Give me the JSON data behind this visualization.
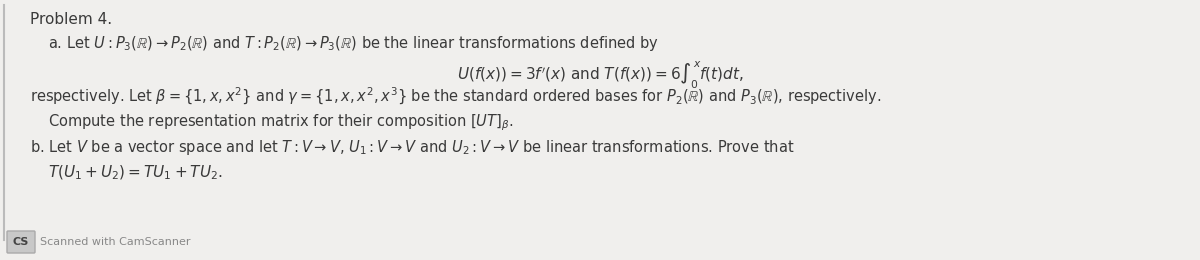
{
  "bg_color": "#f0efed",
  "text_color": "#3a3a3a",
  "title": "Problem 4.",
  "line1": "a. Let $U : P_3(\\mathbb{R}) \\rightarrow P_2(\\mathbb{R})$ and $T : P_2(\\mathbb{R}) \\rightarrow P_3(\\mathbb{R})$ be the linear transformations defined by",
  "line2": "$U(f(x)) = 3f'(x)$ and $T(f(x)) = 6\\int_0^x f(t)dt,$",
  "line3": "respectively. Let $\\beta = \\{1, x, x^2\\}$ and $\\gamma = \\{1, x, x^2, x^3\\}$ be the standard ordered bases for $P_2(\\mathbb{R})$ and $P_3(\\mathbb{R})$, respectively.",
  "line4": "Compute the representation matrix for their composition $[UT]_{\\beta}$.",
  "line5": "b. Let $V$ be a vector space and let $T : V \\rightarrow V$, $U_1 : V \\rightarrow V$ and $U_2 : V \\rightarrow V$ be linear transformations. Prove that",
  "line6": "$T(U_1 + U_2) = TU_1 + TU_2.$",
  "cs_label": "CS",
  "cs_text": "Scanned with CamScanner"
}
